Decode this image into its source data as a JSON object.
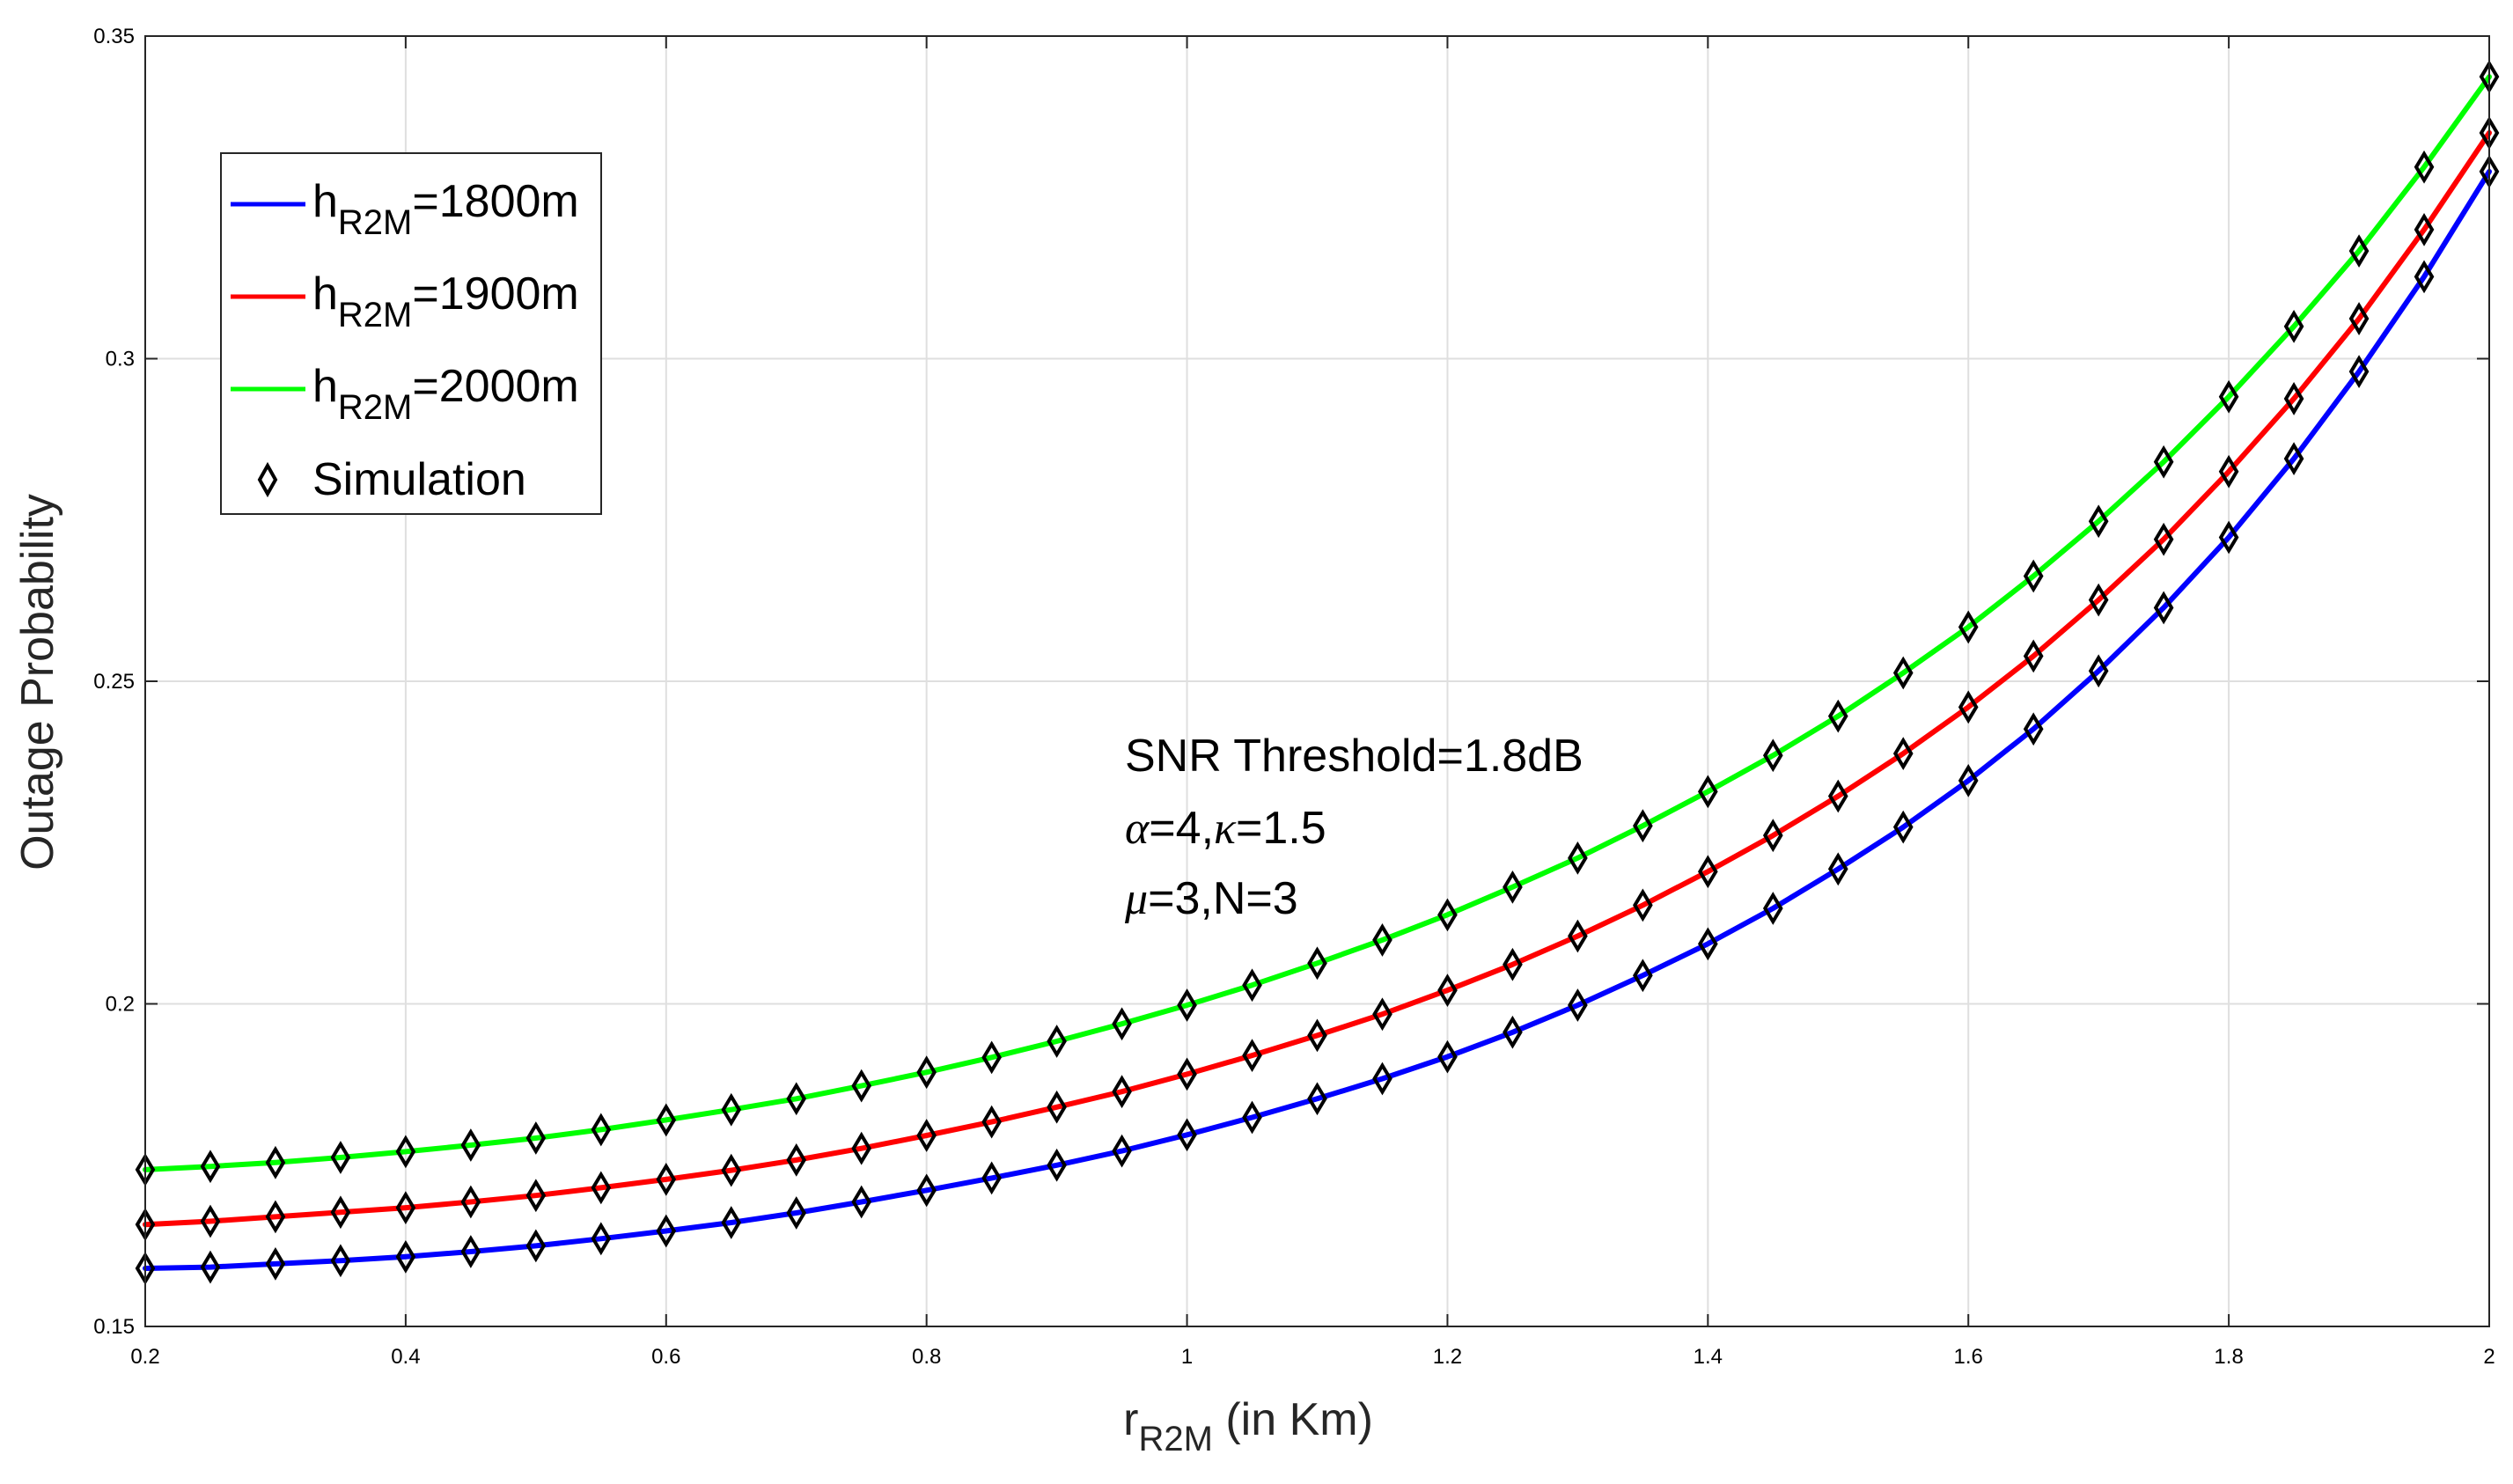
{
  "chart_data": {
    "type": "line",
    "title": "",
    "xlabel": {
      "main": "r",
      "sub": "R2M",
      "suffix": " (in Km)"
    },
    "ylabel": "Outage Probability",
    "xlim": [
      0.2,
      2.0
    ],
    "ylim": [
      0.15,
      0.35
    ],
    "grid": true,
    "legend_position": "top-left",
    "x_ticks": [
      "0.2",
      "0.4",
      "0.6",
      "0.8",
      "1",
      "1.2",
      "1.4",
      "1.6",
      "1.8",
      "2"
    ],
    "y_ticks": [
      "0.15",
      "0.2",
      "0.25",
      "0.3",
      "0.35"
    ],
    "x": [
      0.2,
      0.25,
      0.3,
      0.35,
      0.4,
      0.45,
      0.5,
      0.55,
      0.6,
      0.65,
      0.7,
      0.75,
      0.8,
      0.85,
      0.9,
      0.95,
      1.0,
      1.05,
      1.1,
      1.15,
      1.2,
      1.25,
      1.3,
      1.35,
      1.4,
      1.45,
      1.5,
      1.55,
      1.6,
      1.65,
      1.7,
      1.75,
      1.8,
      1.85,
      1.9,
      1.95,
      2.0
    ],
    "series": [
      {
        "name": "h_R2M=1800m",
        "label_main": "h",
        "label_sub": "R2M",
        "label_value": "=1800m",
        "color": "#0000ff",
        "values": [
          0.159,
          0.1592,
          0.1597,
          0.1602,
          0.1608,
          0.1616,
          0.1625,
          0.1636,
          0.1648,
          0.1661,
          0.1676,
          0.1693,
          0.1711,
          0.173,
          0.175,
          0.1772,
          0.1797,
          0.1824,
          0.1853,
          0.1884,
          0.1918,
          0.1956,
          0.1998,
          0.2044,
          0.2093,
          0.2148,
          0.2209,
          0.2274,
          0.2346,
          0.2426,
          0.2516,
          0.2614,
          0.2723,
          0.2845,
          0.298,
          0.3127,
          0.329
        ]
      },
      {
        "name": "h_R2M=1900m",
        "label_main": "h",
        "label_sub": "R2M",
        "label_value": "=1900m",
        "color": "#ff0000",
        "values": [
          0.1658,
          0.1663,
          0.167,
          0.1677,
          0.1684,
          0.1693,
          0.1703,
          0.1715,
          0.1728,
          0.1742,
          0.1758,
          0.1776,
          0.1796,
          0.1817,
          0.184,
          0.1864,
          0.1891,
          0.192,
          0.1951,
          0.1984,
          0.2021,
          0.2061,
          0.2105,
          0.2153,
          0.2205,
          0.2261,
          0.2322,
          0.2388,
          0.246,
          0.2539,
          0.2626,
          0.272,
          0.2825,
          0.2938,
          0.3062,
          0.32,
          0.335
        ]
      },
      {
        "name": "h_R2M=2000m",
        "label_main": "h",
        "label_sub": "R2M",
        "label_value": "=2000m",
        "color": "#00ff00",
        "values": [
          0.1743,
          0.1748,
          0.1754,
          0.1762,
          0.1771,
          0.1781,
          0.1792,
          0.1805,
          0.182,
          0.1836,
          0.1853,
          0.1873,
          0.1894,
          0.1917,
          0.1942,
          0.1969,
          0.1998,
          0.2029,
          0.2063,
          0.2099,
          0.2138,
          0.2181,
          0.2226,
          0.2276,
          0.2329,
          0.2385,
          0.2446,
          0.2513,
          0.2584,
          0.2663,
          0.2748,
          0.284,
          0.2941,
          0.305,
          0.3167,
          0.3297,
          0.3437
        ]
      }
    ],
    "simulation_marker": {
      "name": "Simulation",
      "marker": "diamond",
      "color": "#000000"
    },
    "annotation": {
      "line1": "SNR Threshold=1.8dB",
      "line2_parts": [
        "α",
        "=4,",
        "κ",
        "=1.5"
      ],
      "line3_parts": [
        "μ",
        "=3,N=3"
      ]
    }
  }
}
